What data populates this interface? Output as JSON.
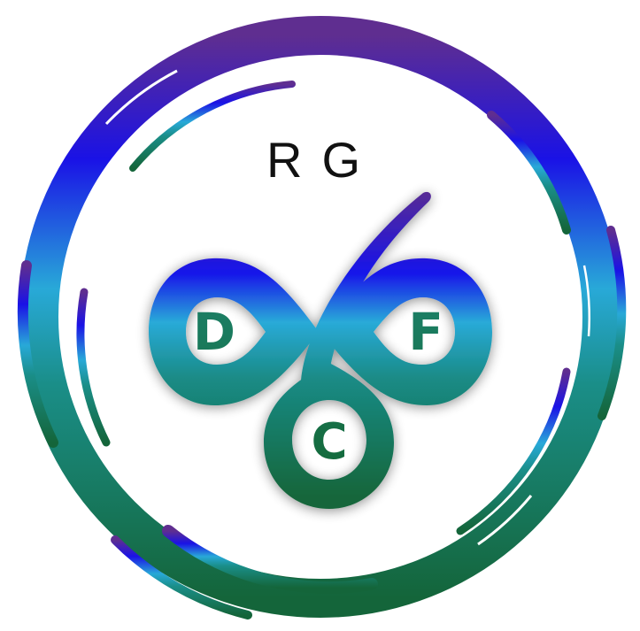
{
  "logo": {
    "top_text": "RG",
    "letter_left": "D",
    "letter_right": "F",
    "letter_bottom": "C",
    "colors": {
      "purple": "#5a2d8c",
      "blue": "#1616e8",
      "cyan": "#28a7d6",
      "teal": "#1a8f86",
      "green": "#16683a",
      "text_dark": "#111111",
      "background": "#ffffff"
    }
  }
}
